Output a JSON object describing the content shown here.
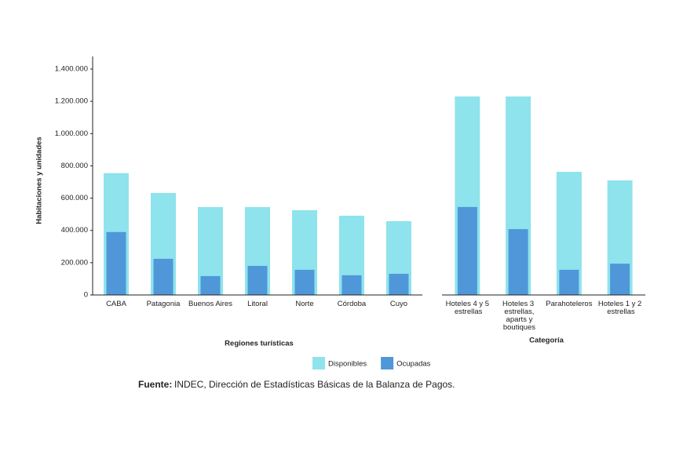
{
  "chart_data": [
    {
      "type": "bar",
      "y_label": "Habitaciones y unidades",
      "x_label": "Regiones turísticas",
      "categories": [
        "CABA",
        "Patagonia",
        "Buenos Aires",
        "Litoral",
        "Norte",
        "Córdoba",
        "Cuyo"
      ],
      "series": [
        {
          "name": "Disponibles",
          "color": "#8ee3ec",
          "values": [
            755000,
            632000,
            545000,
            545000,
            525000,
            491000,
            457000
          ]
        },
        {
          "name": "Ocupadas",
          "color": "#4f97d9",
          "values": [
            390000,
            224000,
            117000,
            180000,
            156000,
            122000,
            131000
          ]
        }
      ],
      "ylim": [
        0,
        1400000
      ],
      "yticks": [
        0,
        {
          "value": 200000,
          "label": "200.000"
        },
        {
          "value": 400000,
          "label": "400.000"
        },
        {
          "value": 600000,
          "label": "600.000"
        },
        {
          "value": 800000,
          "label": "800.000"
        },
        {
          "value": 1000000,
          "label": "1.000.000"
        },
        {
          "value": 1200000,
          "label": "1.200.000"
        },
        {
          "value": 1400000,
          "label": "1.400.000"
        }
      ]
    },
    {
      "type": "bar",
      "x_label": "Categoría",
      "categories": [
        "Hoteles 4 y 5 estrellas",
        "Hoteles 3 estrellas, aparts y boutiques",
        "Parahoteleros",
        "Hoteles 1 y 2 estrellas"
      ],
      "series": [
        {
          "name": "Disponibles",
          "color": "#8ee3ec",
          "values": [
            1230000,
            1230000,
            763000,
            710000
          ]
        },
        {
          "name": "Ocupadas",
          "color": "#4f97d9",
          "values": [
            545000,
            408000,
            156000,
            194000
          ]
        }
      ],
      "ylim": [
        0,
        1400000
      ]
    }
  ],
  "source": {
    "label": "Fuente:",
    "text": "INDEC, Dirección de Estadísticas Básicas de la Balanza de Pagos."
  }
}
